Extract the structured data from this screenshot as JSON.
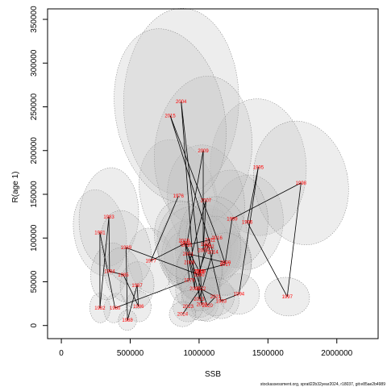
{
  "chart_data": {
    "type": "scatter",
    "title": "",
    "xlabel": "SSB",
    "ylabel": "R(age 1)",
    "xlim": [
      -100000,
      2300000
    ],
    "ylim": [
      -15000,
      362000
    ],
    "x_ticks": [
      0,
      500000,
      1000000,
      1500000,
      2000000
    ],
    "y_ticks": [
      0,
      50000,
      100000,
      150000,
      200000,
      250000,
      300000,
      350000
    ],
    "x_tick_labels": [
      "0",
      "500000",
      "1000000",
      "1500000",
      "2000000"
    ],
    "y_tick_labels": [
      "0",
      "50000",
      "100000",
      "150000",
      "200000",
      "250000",
      "300000",
      "350000"
    ],
    "point_color": "#ff0000",
    "line_color": "#000000",
    "ellipse_fill": "#bdbdbd",
    "ellipse_stroke": "#808080",
    "points": [
      {
        "year": "1976",
        "ssb": 850000,
        "rec": 148000
      },
      {
        "year": "1977",
        "ssb": 650000,
        "rec": 74000
      },
      {
        "year": "1978",
        "ssb": 900000,
        "rec": 94000
      },
      {
        "year": "1979",
        "ssb": 930000,
        "rec": 52000
      },
      {
        "year": "1980",
        "ssb": 390000,
        "rec": 20000
      },
      {
        "year": "1981",
        "ssb": 280000,
        "rec": 106000
      },
      {
        "year": "1982",
        "ssb": 280000,
        "rec": 20000
      },
      {
        "year": "1983",
        "ssb": 345000,
        "rec": 124000
      },
      {
        "year": "1984",
        "ssb": 350000,
        "rec": 62000
      },
      {
        "year": "1985",
        "ssb": 450000,
        "rec": 58000
      },
      {
        "year": "1986",
        "ssb": 560000,
        "rec": 22000
      },
      {
        "year": "1987",
        "ssb": 550000,
        "rec": 46000
      },
      {
        "year": "1988",
        "ssb": 480000,
        "rec": 6000
      },
      {
        "year": "1989",
        "ssb": 470000,
        "rec": 89000
      },
      {
        "year": "1990",
        "ssb": 1000000,
        "rec": 58000
      },
      {
        "year": "1991",
        "ssb": 1050000,
        "rec": 93000
      },
      {
        "year": "1992",
        "ssb": 1070000,
        "rec": 90000
      },
      {
        "year": "1993",
        "ssb": 1160000,
        "rec": 28000
      },
      {
        "year": "1994",
        "ssb": 1290000,
        "rec": 36000
      },
      {
        "year": "1995",
        "ssb": 1430000,
        "rec": 181000
      },
      {
        "year": "1996",
        "ssb": 1350000,
        "rec": 118000
      },
      {
        "year": "1997",
        "ssb": 1640000,
        "rec": 33000
      },
      {
        "year": "1998",
        "ssb": 1740000,
        "rec": 163000
      },
      {
        "year": "1999",
        "ssb": 1240000,
        "rec": 122000
      },
      {
        "year": "2000",
        "ssb": 1190000,
        "rec": 72000
      },
      {
        "year": "2001",
        "ssb": 920000,
        "rec": 82000
      },
      {
        "year": "2002",
        "ssb": 1020000,
        "rec": 24000
      },
      {
        "year": "2003",
        "ssb": 1010000,
        "rec": 62000
      },
      {
        "year": "2004",
        "ssb": 870000,
        "rec": 256000
      },
      {
        "year": "2005",
        "ssb": 970000,
        "rec": 42000
      },
      {
        "year": "2006",
        "ssb": 930000,
        "rec": 72000
      },
      {
        "year": "2007",
        "ssb": 1050000,
        "rec": 143000
      },
      {
        "year": "2008",
        "ssb": 1030000,
        "rec": 86000
      },
      {
        "year": "2009",
        "ssb": 1030000,
        "rec": 200000
      },
      {
        "year": "2010",
        "ssb": 910000,
        "rec": 92000
      },
      {
        "year": "2011",
        "ssb": 1080000,
        "rec": 98000
      },
      {
        "year": "2012",
        "ssb": 1000000,
        "rec": 62000
      },
      {
        "year": "2013",
        "ssb": 1000000,
        "rec": 30000
      },
      {
        "year": "2014",
        "ssb": 1100000,
        "rec": 84000
      },
      {
        "year": "2015",
        "ssb": 790000,
        "rec": 240000
      },
      {
        "year": "2016",
        "ssb": 1130000,
        "rec": 100000
      },
      {
        "year": "2017",
        "ssb": 1190000,
        "rec": 70000
      },
      {
        "year": "2018",
        "ssb": 1000000,
        "rec": 62000
      },
      {
        "year": "2019",
        "ssb": 890000,
        "rec": 97000
      },
      {
        "year": "2020",
        "ssb": 1060000,
        "rec": 23000
      },
      {
        "year": "2021",
        "ssb": 1120000,
        "rec": 33000
      },
      {
        "year": "2022",
        "ssb": 1010000,
        "rec": 42000
      },
      {
        "year": "2023",
        "ssb": 920000,
        "rec": 22000
      },
      {
        "year": "2024",
        "ssb": 880000,
        "rec": 13000
      }
    ]
  },
  "footer": "stockassessment.org, spratl22b32year2024, r18037, git:e85ae2b4989"
}
